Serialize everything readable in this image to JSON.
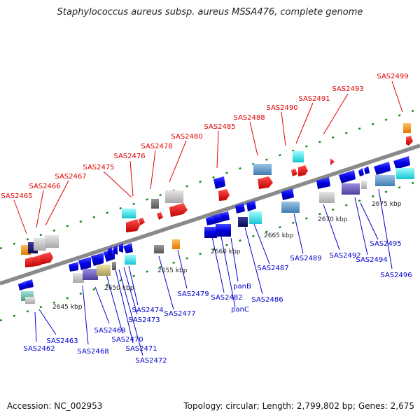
{
  "title": "Staphylococcus aureus subsp. aureus MSSA476, complete genome",
  "footer": {
    "accession": "Accession: NC_002953",
    "summary": "Topology: circular; Length: 2,799,802 bp; Genes: 2,675"
  },
  "colors": {
    "background": "#ffffff",
    "backbone": "#808080",
    "tick": "#1a8a1a",
    "label_red": "#e00000",
    "label_blue": "#0000cc"
  },
  "kbp_labels": [
    "2645 kbp",
    "2650 kbp",
    "2655 kbp",
    "2660 kbp",
    "2665 kbp",
    "2670 kbp",
    "2675 kbp"
  ],
  "red_labels": [
    "SAS2465",
    "SAS2466",
    "SAS2467",
    "SAS2475",
    "SAS2476",
    "SAS2478",
    "SAS2480",
    "SAS2485",
    "SAS2488",
    "SAS2490",
    "SAS2491",
    "SAS2493",
    "SAS2499"
  ],
  "blue_labels": [
    "SAS2462",
    "SAS2463",
    "SAS2468",
    "SAS2469",
    "SAS2470",
    "SAS2471",
    "SAS2472",
    "SAS2473",
    "SAS2474",
    "SAS2477",
    "SAS2479",
    "SAS2482",
    "panC",
    "panB",
    "SAS2486",
    "SAS2487",
    "SAS2489",
    "SAS2492",
    "SAS2494",
    "SAS2495",
    "SAS2496"
  ],
  "gene_fill_names": [
    "blue",
    "navy",
    "slate-purple",
    "khaki",
    "gray",
    "cyan",
    "orange",
    "steelblue",
    "red"
  ]
}
